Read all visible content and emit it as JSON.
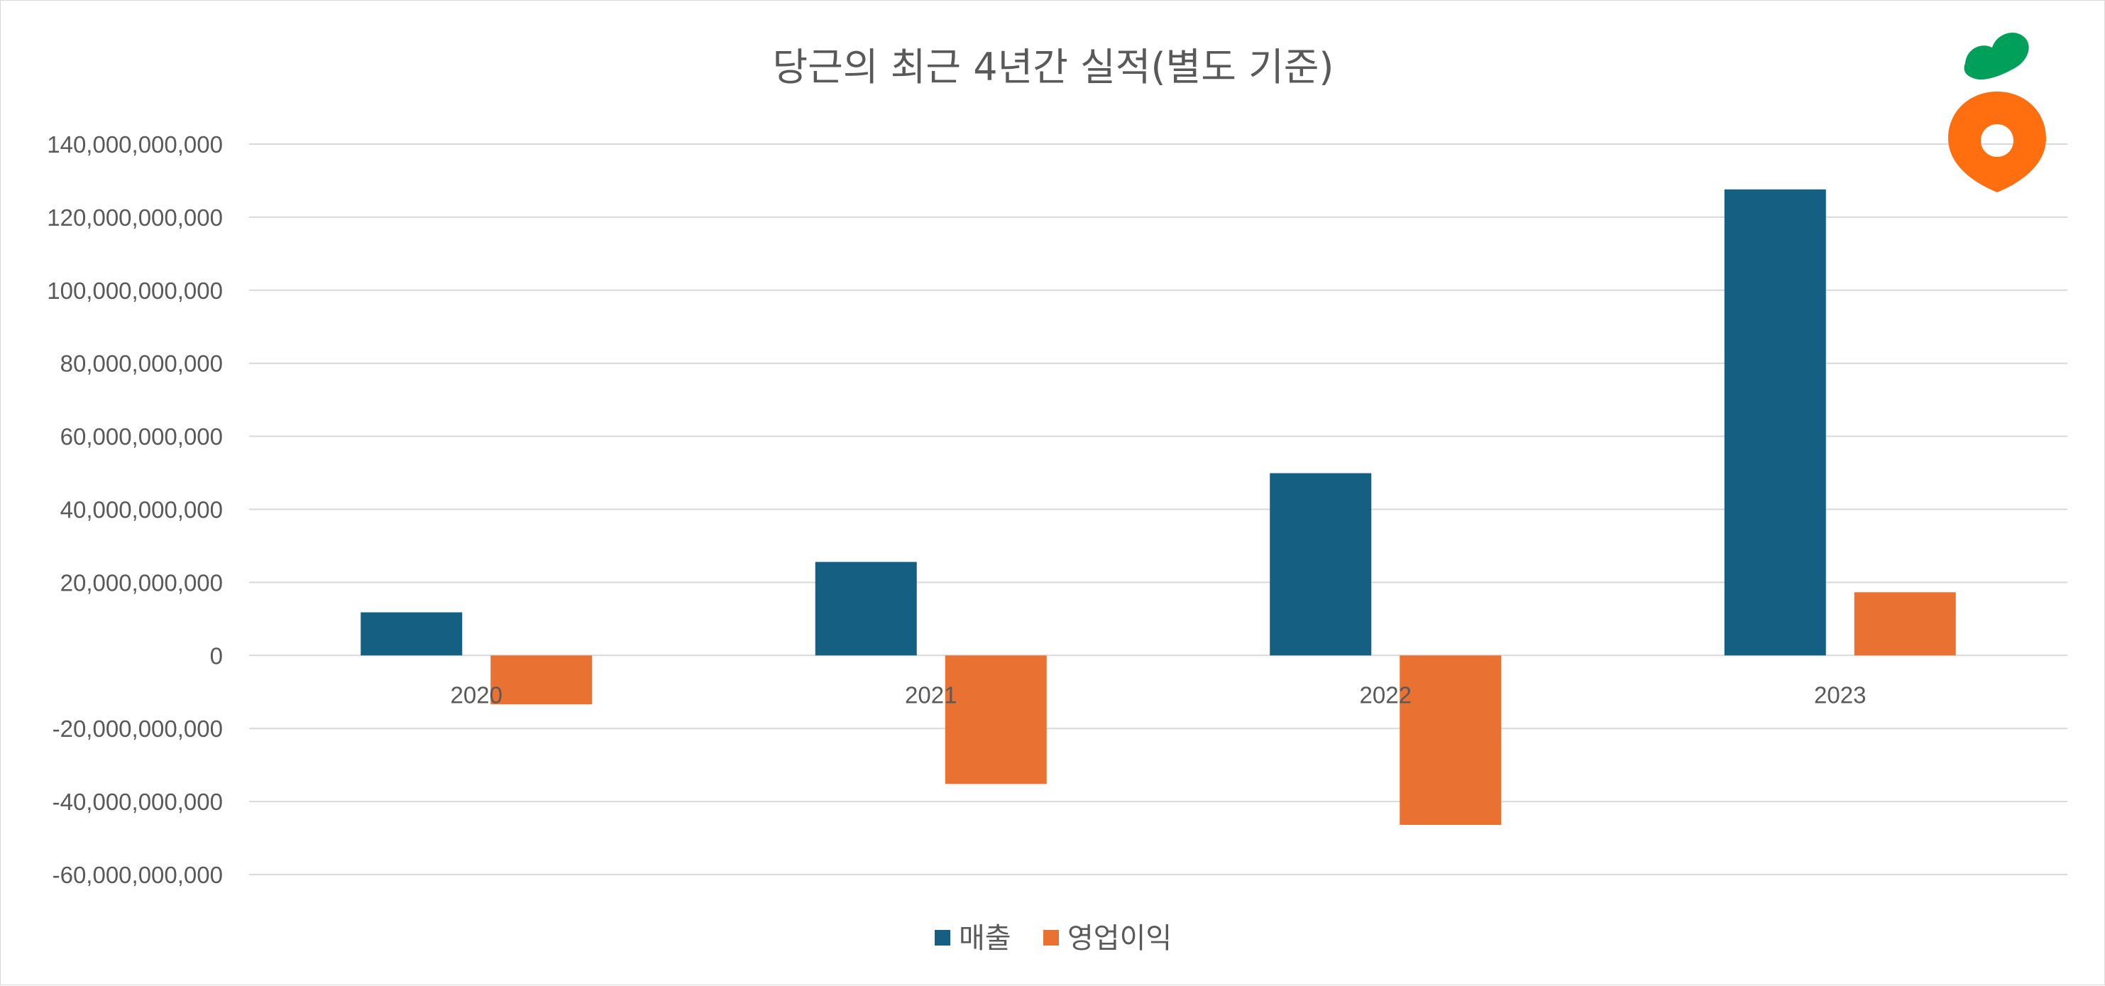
{
  "chart_data": {
    "type": "bar",
    "title": "당근의 최근 4년간 실적(별도 기준)",
    "categories": [
      "2020",
      "2021",
      "2022",
      "2023"
    ],
    "series": [
      {
        "name": "매출",
        "color": "#156082",
        "values": [
          11800000000,
          25600000000,
          49900000000,
          127600000000
        ]
      },
      {
        "name": "영업이익",
        "color": "#e97132",
        "values": [
          -13400000000,
          -35200000000,
          -46400000000,
          17300000000
        ]
      }
    ],
    "y_ticks": [
      {
        "value": 140000000000,
        "label": "140,000,000,000"
      },
      {
        "value": 120000000000,
        "label": "120,000,000,000"
      },
      {
        "value": 100000000000,
        "label": "100,000,000,000"
      },
      {
        "value": 80000000000,
        "label": "80,000,000,000"
      },
      {
        "value": 60000000000,
        "label": "60,000,000,000"
      },
      {
        "value": 40000000000,
        "label": "40,000,000,000"
      },
      {
        "value": 20000000000,
        "label": "20,000,000,000"
      },
      {
        "value": 0,
        "label": "0"
      },
      {
        "value": -20000000000,
        "label": "-20,000,000,000"
      },
      {
        "value": -40000000000,
        "label": "-40,000,000,000"
      },
      {
        "value": -60000000000,
        "label": "-60,000,000,000"
      }
    ],
    "ylim": [
      -60000000000,
      140000000000
    ],
    "grid": true,
    "legend_position": "bottom",
    "logo": {
      "name": "carrot-logo-icon",
      "leaf_color": "#00a05b",
      "body_color": "#ff6f0f"
    }
  }
}
